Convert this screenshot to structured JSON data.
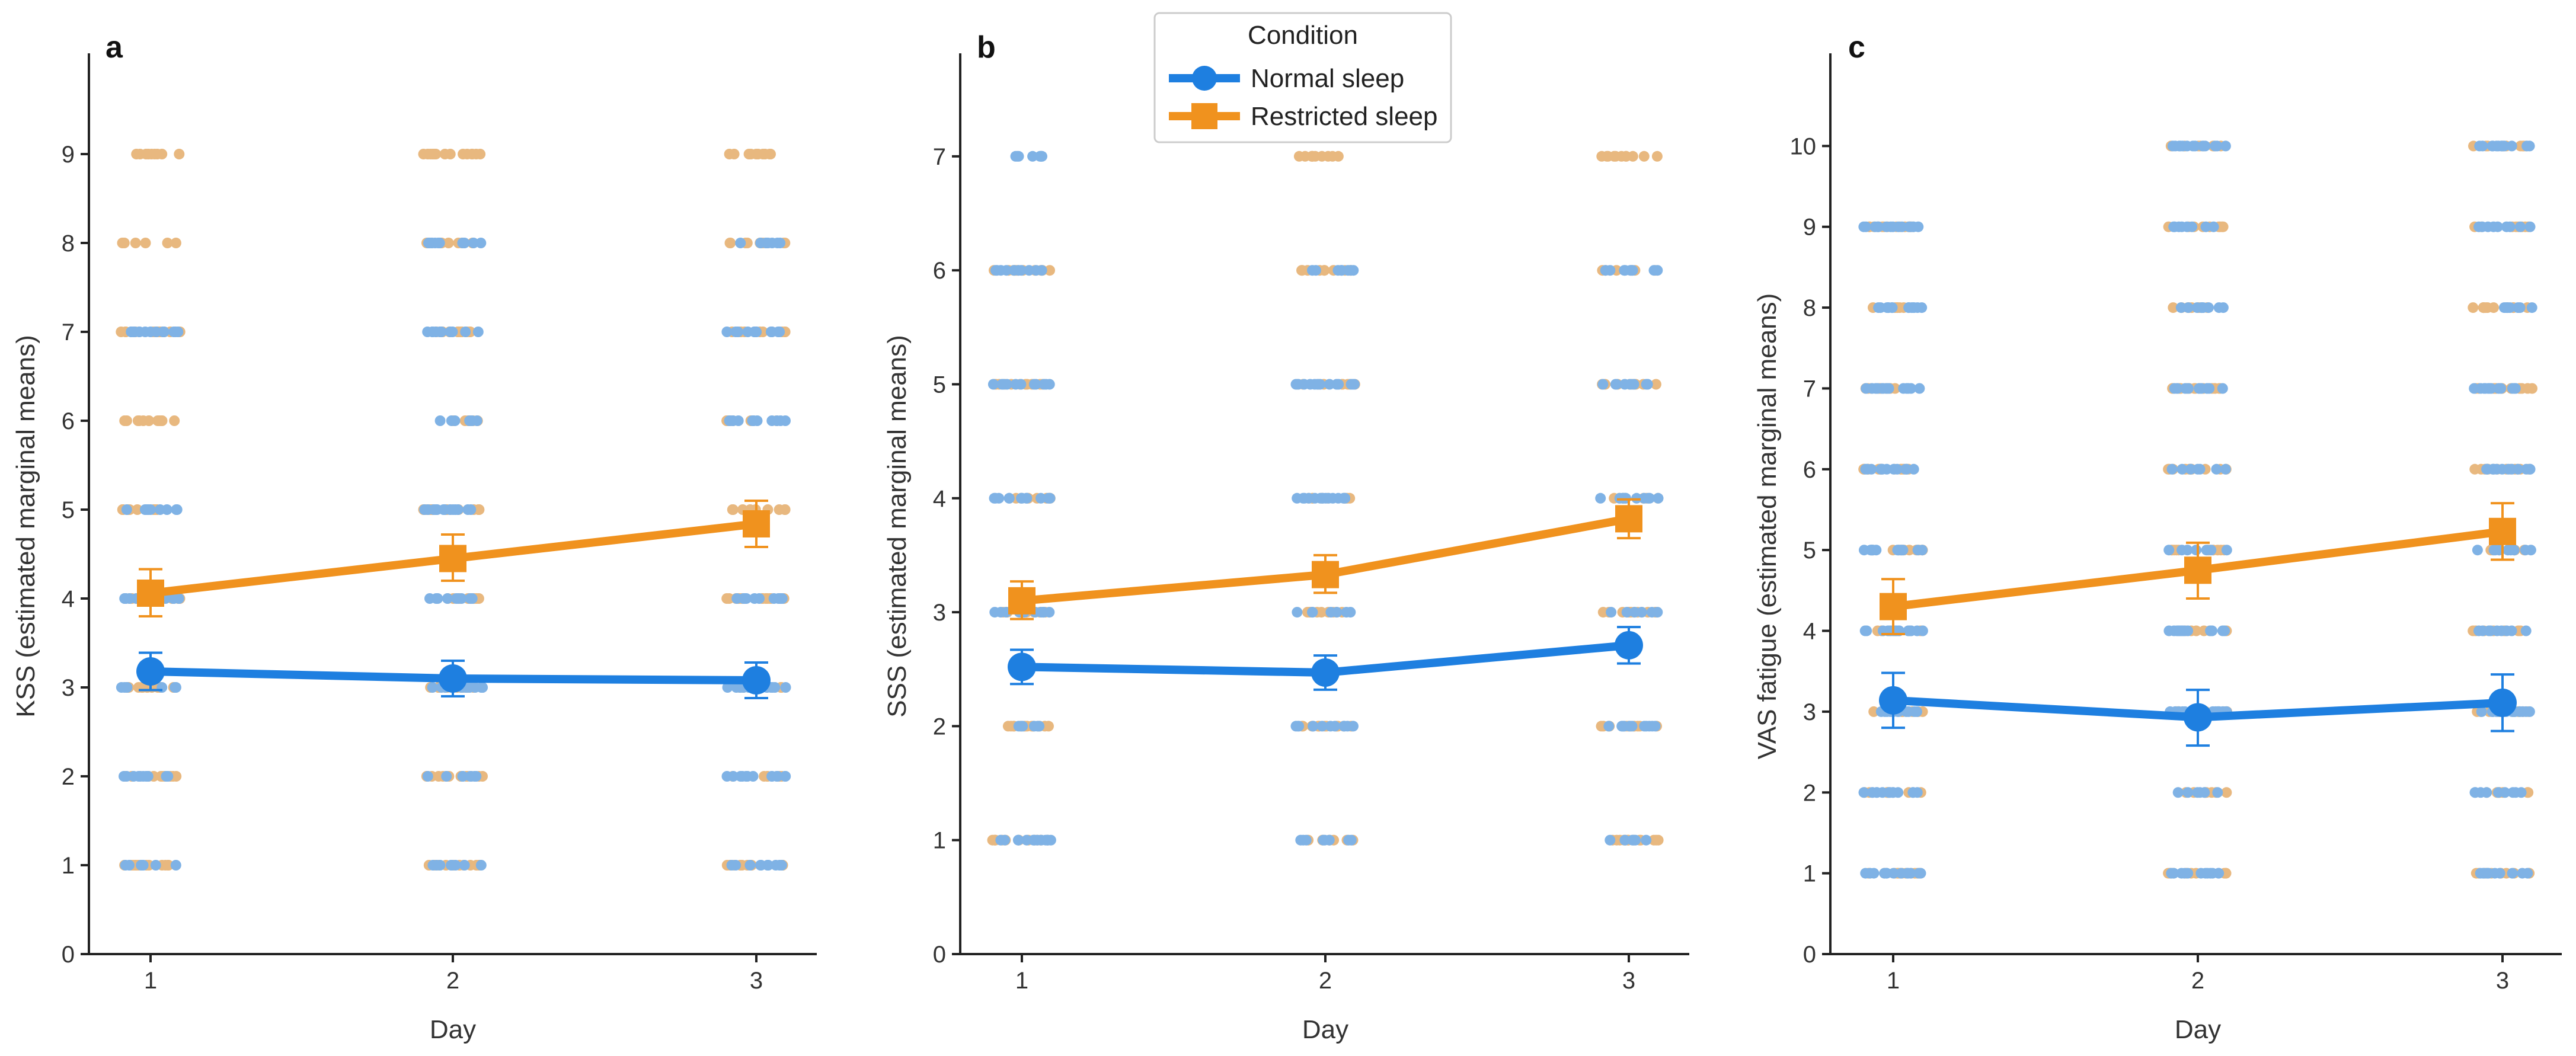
{
  "legend": {
    "title": "Condition",
    "entries": [
      {
        "label": "Normal sleep",
        "marker": "circle",
        "color": "#1e7fe0"
      },
      {
        "label": "Restricted sleep",
        "marker": "square",
        "color": "#f0921e"
      }
    ]
  },
  "colors": {
    "normal": "#1e7fe0",
    "restricted": "#f0921e",
    "normal_raw": "#7fb2e5",
    "restricted_raw": "#e8b87f",
    "axis": "#222222"
  },
  "chart_data": [
    {
      "panel": "a",
      "type": "line",
      "title": "",
      "xlabel": "Day",
      "ylabel": "KSS (estimated marginal means)",
      "categories": [
        "1",
        "2",
        "3"
      ],
      "ylim": [
        0,
        10
      ],
      "yticks": [
        0,
        1,
        2,
        3,
        4,
        5,
        6,
        7,
        8,
        9
      ],
      "series": [
        {
          "name": "Normal sleep",
          "values": [
            3.18,
            3.1,
            3.08
          ],
          "ci_low": [
            2.97,
            2.9,
            2.88
          ],
          "ci_high": [
            3.39,
            3.3,
            3.28
          ]
        },
        {
          "name": "Restricted sleep",
          "values": [
            4.06,
            4.45,
            4.84
          ],
          "ci_low": [
            3.8,
            4.2,
            4.58
          ],
          "ci_high": [
            4.33,
            4.72,
            5.1
          ]
        }
      ],
      "raw_levels": {
        "Normal sleep": [
          [
            1,
            2,
            3,
            4,
            5,
            7
          ],
          [
            1,
            2,
            3,
            4,
            5,
            6,
            7,
            8
          ],
          [
            1,
            2,
            3,
            4,
            6,
            7,
            8
          ]
        ],
        "Restricted sleep": [
          [
            1,
            2,
            3,
            4,
            5,
            6,
            7,
            8,
            9
          ],
          [
            1,
            2,
            3,
            4,
            5,
            6,
            7,
            8,
            9
          ],
          [
            1,
            2,
            3,
            4,
            5,
            6,
            7,
            8,
            9
          ]
        ]
      }
    },
    {
      "panel": "b",
      "type": "line",
      "title": "",
      "xlabel": "Day",
      "ylabel": "SSS (estimated marginal means)",
      "categories": [
        "1",
        "2",
        "3"
      ],
      "ylim": [
        0,
        7.8
      ],
      "yticks": [
        0,
        1,
        2,
        3,
        4,
        5,
        6,
        7
      ],
      "series": [
        {
          "name": "Normal sleep",
          "values": [
            2.52,
            2.47,
            2.71
          ],
          "ci_low": [
            2.37,
            2.32,
            2.55
          ],
          "ci_high": [
            2.67,
            2.62,
            2.87
          ]
        },
        {
          "name": "Restricted sleep",
          "values": [
            3.1,
            3.33,
            3.82
          ],
          "ci_low": [
            2.94,
            3.17,
            3.65
          ],
          "ci_high": [
            3.27,
            3.5,
            3.99
          ]
        }
      ],
      "raw_levels": {
        "Normal sleep": [
          [
            1,
            2,
            3,
            4,
            5,
            6,
            7
          ],
          [
            1,
            2,
            3,
            4,
            5,
            6
          ],
          [
            1,
            2,
            3,
            4,
            5,
            6
          ]
        ],
        "Restricted sleep": [
          [
            1,
            2,
            3,
            4,
            5,
            6
          ],
          [
            1,
            2,
            3,
            4,
            5,
            6,
            7
          ],
          [
            1,
            2,
            3,
            4,
            5,
            6,
            7
          ]
        ]
      }
    },
    {
      "panel": "c",
      "type": "line",
      "title": "",
      "xlabel": "Day",
      "ylabel": "VAS fatigue (estimated marginal means)",
      "categories": [
        "1",
        "2",
        "3"
      ],
      "ylim": [
        0,
        11
      ],
      "yticks": [
        0,
        1,
        2,
        3,
        4,
        5,
        6,
        7,
        8,
        9,
        10
      ],
      "series": [
        {
          "name": "Normal sleep",
          "values": [
            3.14,
            2.93,
            3.11
          ],
          "ci_low": [
            2.8,
            2.58,
            2.76
          ],
          "ci_high": [
            3.48,
            3.27,
            3.46
          ]
        },
        {
          "name": "Restricted sleep",
          "values": [
            4.3,
            4.75,
            5.23
          ],
          "ci_low": [
            3.96,
            4.4,
            4.88
          ],
          "ci_high": [
            4.64,
            5.09,
            5.58
          ]
        }
      ],
      "raw_levels": {
        "Normal sleep": [
          [
            1,
            2,
            3,
            4,
            5,
            6,
            7,
            8,
            9
          ],
          [
            1,
            2,
            3,
            4,
            5,
            6,
            7,
            8,
            9,
            10
          ],
          [
            1,
            2,
            3,
            4,
            5,
            6,
            7,
            8,
            9,
            10
          ]
        ],
        "Restricted sleep": [
          [
            1,
            2,
            3,
            4,
            5,
            6,
            7,
            8,
            9
          ],
          [
            1,
            2,
            3,
            4,
            5,
            6,
            7,
            8,
            9,
            10
          ],
          [
            1,
            2,
            3,
            4,
            5,
            6,
            7,
            8,
            9,
            10
          ]
        ]
      }
    }
  ]
}
